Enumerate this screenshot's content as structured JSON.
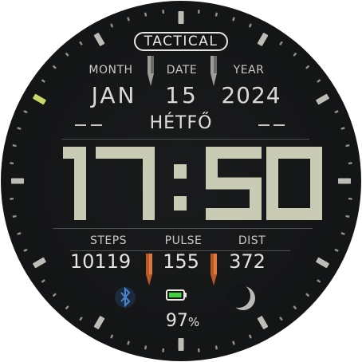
{
  "brand": "TACTICAL",
  "date": {
    "month_label": "MONTH",
    "date_label": "DATE",
    "year_label": "YEAR",
    "month": "JAN",
    "day_of_month": "15",
    "year": "2024"
  },
  "weekday": "HÉTFŐ",
  "time": {
    "hour": "17",
    "minute": "50",
    "separator": ":"
  },
  "stats": {
    "steps_label": "STEPS",
    "pulse_label": "PULSE",
    "dist_label": "DIST",
    "steps": "10119",
    "pulse": "155",
    "dist": "372"
  },
  "status": {
    "bluetooth_icon": "bluetooth-icon",
    "battery_icon": "battery-icon",
    "moon_icon": "moon-phase-icon",
    "battery_value": "97",
    "battery_unit": "%",
    "battery_level": 0.97
  },
  "colors": {
    "digits": "#c9cbb4",
    "accent_orange": "#b85a25",
    "battery_green": "#3fd23a",
    "bluetooth_blue": "#3a73b8",
    "tick_marker": "#c8d66a"
  }
}
